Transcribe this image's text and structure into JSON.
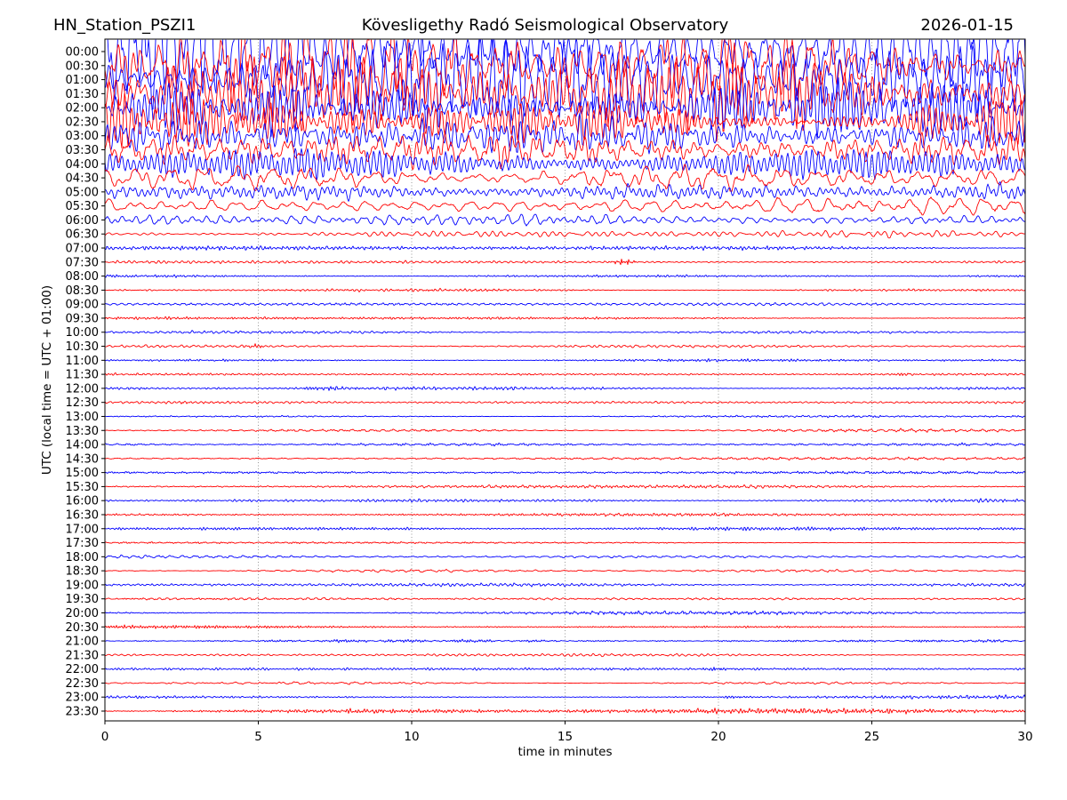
{
  "header": {
    "station": "HN_Station_PSZI1",
    "observatory": "Kövesligethy Radó Seismological Observatory",
    "date": "2026-01-15"
  },
  "axes": {
    "xlabel": "time in minutes",
    "ylabel": "UTC (local time = UTC + 01:00)",
    "x_ticks": [
      "0",
      "5",
      "10",
      "15",
      "20",
      "25",
      "30"
    ],
    "x_grid_minutes": [
      5,
      10,
      15,
      20,
      25
    ],
    "x_range_minutes": [
      0,
      30
    ],
    "y_first_row": "00:00",
    "y_last_row": "23:30",
    "y_row_interval": "00:30"
  },
  "colors": {
    "trace_blue": "#0000ff",
    "trace_red": "#ff0000",
    "grid": "#7f7f7f",
    "axis": "#000000",
    "background": "#ffffff"
  },
  "chart_data": {
    "type": "line",
    "subtype": "helicorder-seismogram",
    "title": "HN_Station_PSZI1 — Kövesligethy Radó Seismological Observatory — 2026-01-15",
    "xlabel": "time in minutes",
    "ylabel": "UTC (local time = UTC + 01:00)",
    "minutes_per_line": 30,
    "x_ticks": [
      0,
      5,
      10,
      15,
      20,
      25,
      30
    ],
    "grid": "vertical-dotted-at-5-min",
    "legend": "none",
    "description": "48 half-hour traces, alternating blue/red. Strong noise 00:00-06:30 decaying with time; quiet background from 07:00 onward with small local bursts. amp = approx peak amplitude in px; bursts: min = minutes into line.",
    "rows": [
      {
        "utc": "00:00",
        "color": "blue",
        "amp": 50,
        "bursts": []
      },
      {
        "utc": "00:30",
        "color": "red",
        "amp": 48,
        "bursts": []
      },
      {
        "utc": "01:00",
        "color": "blue",
        "amp": 46,
        "bursts": []
      },
      {
        "utc": "01:30",
        "color": "red",
        "amp": 42,
        "bursts": []
      },
      {
        "utc": "02:00",
        "color": "blue",
        "amp": 30,
        "bursts": []
      },
      {
        "utc": "02:30",
        "color": "red",
        "amp": 27,
        "bursts": []
      },
      {
        "utc": "03:00",
        "color": "blue",
        "amp": 24,
        "bursts": []
      },
      {
        "utc": "03:30",
        "color": "red",
        "amp": 22,
        "bursts": []
      },
      {
        "utc": "04:00",
        "color": "blue",
        "amp": 18,
        "bursts": []
      },
      {
        "utc": "04:30",
        "color": "red",
        "amp": 16,
        "bursts": []
      },
      {
        "utc": "05:00",
        "color": "blue",
        "amp": 13,
        "bursts": []
      },
      {
        "utc": "05:30",
        "color": "red",
        "amp": 11,
        "bursts": []
      },
      {
        "utc": "06:00",
        "color": "blue",
        "amp": 6.5,
        "bursts": []
      },
      {
        "utc": "06:30",
        "color": "red",
        "amp": 4.5,
        "bursts": []
      },
      {
        "utc": "07:00",
        "color": "blue",
        "amp": 2.2,
        "bursts": []
      },
      {
        "utc": "07:30",
        "color": "red",
        "amp": 1.7,
        "bursts": [
          {
            "min": 16.9,
            "amp": 3.5,
            "sigma": 9
          }
        ]
      },
      {
        "utc": "08:00",
        "color": "blue",
        "amp": 1.7,
        "bursts": []
      },
      {
        "utc": "08:30",
        "color": "red",
        "amp": 1.5,
        "bursts": []
      },
      {
        "utc": "09:00",
        "color": "blue",
        "amp": 1.7,
        "bursts": []
      },
      {
        "utc": "09:30",
        "color": "red",
        "amp": 1.5,
        "bursts": []
      },
      {
        "utc": "10:00",
        "color": "blue",
        "amp": 1.6,
        "bursts": []
      },
      {
        "utc": "10:30",
        "color": "red",
        "amp": 1.5,
        "bursts": [
          {
            "min": 4.9,
            "amp": 2.6,
            "sigma": 7
          }
        ]
      },
      {
        "utc": "11:00",
        "color": "blue",
        "amp": 1.6,
        "bursts": []
      },
      {
        "utc": "11:30",
        "color": "red",
        "amp": 1.5,
        "bursts": [
          {
            "min": 26,
            "amp": 1.8,
            "sigma": 6
          }
        ]
      },
      {
        "utc": "12:00",
        "color": "blue",
        "amp": 1.7,
        "bursts": [
          {
            "min": 7.3,
            "amp": 2.2,
            "sigma": 22
          }
        ]
      },
      {
        "utc": "12:30",
        "color": "red",
        "amp": 1.5,
        "bursts": [
          {
            "min": 2.6,
            "amp": 1.6,
            "sigma": 5
          }
        ]
      },
      {
        "utc": "13:00",
        "color": "blue",
        "amp": 1.6,
        "bursts": []
      },
      {
        "utc": "13:30",
        "color": "red",
        "amp": 1.6,
        "bursts": []
      },
      {
        "utc": "14:00",
        "color": "blue",
        "amp": 1.6,
        "bursts": []
      },
      {
        "utc": "14:30",
        "color": "red",
        "amp": 1.6,
        "bursts": []
      },
      {
        "utc": "15:00",
        "color": "blue",
        "amp": 1.7,
        "bursts": []
      },
      {
        "utc": "15:30",
        "color": "red",
        "amp": 1.5,
        "bursts": []
      },
      {
        "utc": "16:00",
        "color": "blue",
        "amp": 1.8,
        "bursts": []
      },
      {
        "utc": "16:30",
        "color": "red",
        "amp": 1.5,
        "bursts": []
      },
      {
        "utc": "17:00",
        "color": "blue",
        "amp": 1.7,
        "bursts": []
      },
      {
        "utc": "17:30",
        "color": "red",
        "amp": 1.5,
        "bursts": []
      },
      {
        "utc": "18:00",
        "color": "blue",
        "amp": 1.7,
        "bursts": []
      },
      {
        "utc": "18:30",
        "color": "red",
        "amp": 1.5,
        "bursts": []
      },
      {
        "utc": "19:00",
        "color": "blue",
        "amp": 1.8,
        "bursts": []
      },
      {
        "utc": "19:30",
        "color": "red",
        "amp": 1.6,
        "bursts": []
      },
      {
        "utc": "20:00",
        "color": "blue",
        "amp": 1.7,
        "bursts": []
      },
      {
        "utc": "20:30",
        "color": "red",
        "amp": 1.5,
        "bursts": []
      },
      {
        "utc": "21:00",
        "color": "blue",
        "amp": 1.7,
        "bursts": [
          {
            "min": 29,
            "amp": 2.2,
            "sigma": 8
          }
        ]
      },
      {
        "utc": "21:30",
        "color": "red",
        "amp": 1.5,
        "bursts": []
      },
      {
        "utc": "22:00",
        "color": "blue",
        "amp": 1.7,
        "bursts": [
          {
            "min": 19.9,
            "amp": 2.2,
            "sigma": 8
          }
        ]
      },
      {
        "utc": "22:30",
        "color": "red",
        "amp": 1.5,
        "bursts": []
      },
      {
        "utc": "23:00",
        "color": "blue",
        "amp": 2.0,
        "bursts": [
          {
            "min": 20.5,
            "amp": 1.5,
            "sigma": 15
          }
        ]
      },
      {
        "utc": "23:30",
        "color": "red",
        "amp": 2.7,
        "bursts": []
      }
    ]
  }
}
